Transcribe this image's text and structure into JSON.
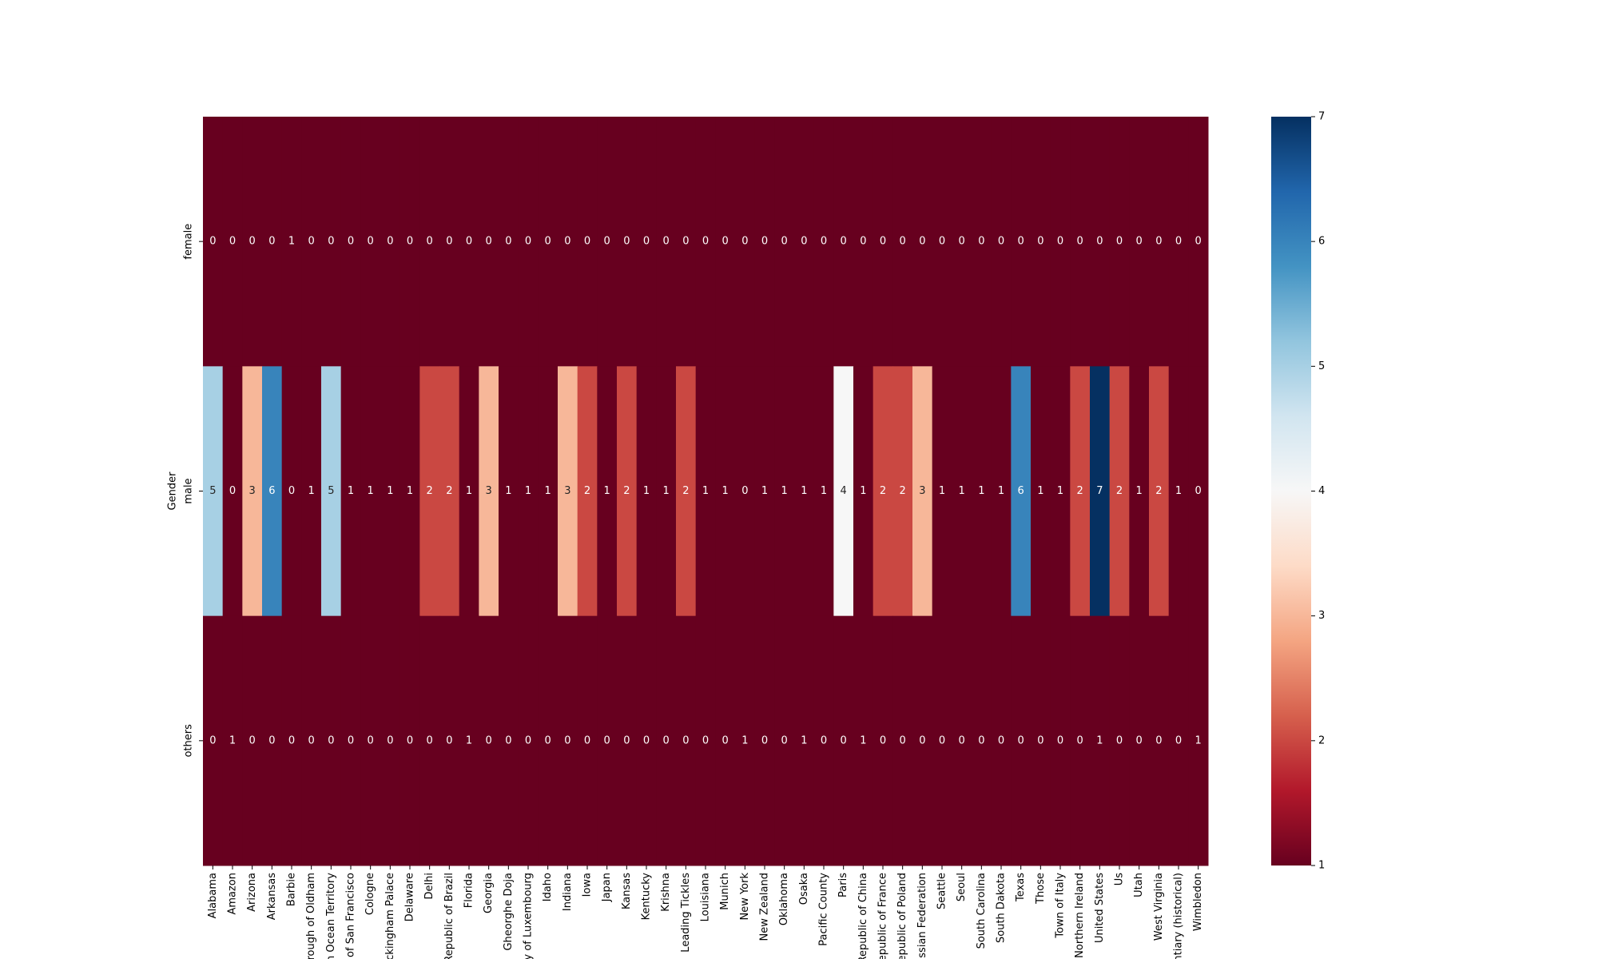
{
  "chart_data": {
    "type": "heatmap",
    "ylabel": "Gender",
    "categories": [
      "Alabama",
      "Amazon",
      "Arizona",
      "Arkansas",
      "Barbie",
      "orough of Oldham",
      "n Ocean Territory",
      "y of San Francisco",
      "Cologne",
      "uckingham Palace",
      "Delaware",
      "Delhi",
      "Republic of Brazil",
      "Florida",
      "Georgia",
      "Gheorghe Doja",
      "ny of Luxembourg",
      "Idaho",
      "Indiana",
      "Iowa",
      "Japan",
      "Kansas",
      "Kentucky",
      "Krishna",
      "Leading Tickles",
      "Louisiana",
      "Munich",
      "New York",
      "New Zealand",
      "Oklahoma",
      "Osaka",
      "Pacific County",
      "Paris",
      "Republic of China",
      "epublic of France",
      "epublic of Poland",
      "ussian Federation",
      "Seattle",
      "Seoul",
      "South Carolina",
      "South Dakota",
      "Texas",
      "Those",
      "Town of Italy",
      "l Northern Ireland",
      "United States",
      "Us",
      "Utah",
      "West Virginia",
      "entiary (historical)",
      "Wimbledon"
    ],
    "rows": [
      "female",
      "male",
      "others"
    ],
    "values": [
      [
        0,
        0,
        0,
        0,
        1,
        0,
        0,
        0,
        0,
        0,
        0,
        0,
        0,
        0,
        0,
        0,
        0,
        0,
        0,
        0,
        0,
        0,
        0,
        0,
        0,
        0,
        0,
        0,
        0,
        0,
        0,
        0,
        0,
        0,
        0,
        0,
        0,
        0,
        0,
        0,
        0,
        0,
        0,
        0,
        0,
        0,
        0,
        0,
        0,
        0,
        0
      ],
      [
        5,
        0,
        3,
        6,
        0,
        1,
        5,
        1,
        1,
        1,
        1,
        2,
        2,
        1,
        3,
        1,
        1,
        1,
        3,
        2,
        1,
        2,
        1,
        1,
        2,
        1,
        1,
        0,
        1,
        1,
        1,
        1,
        4,
        1,
        2,
        2,
        3,
        1,
        1,
        1,
        1,
        6,
        1,
        1,
        2,
        7,
        2,
        1,
        2,
        1,
        0
      ],
      [
        0,
        1,
        0,
        0,
        0,
        0,
        0,
        0,
        0,
        0,
        0,
        0,
        0,
        1,
        0,
        0,
        0,
        0,
        0,
        0,
        0,
        0,
        0,
        0,
        0,
        0,
        0,
        1,
        0,
        0,
        1,
        0,
        0,
        1,
        0,
        0,
        0,
        0,
        0,
        0,
        0,
        0,
        0,
        0,
        0,
        1,
        0,
        0,
        0,
        0,
        1
      ]
    ],
    "colormap": [
      "#67001f",
      "#b2182b",
      "#d6604d",
      "#f4a582",
      "#fddbc7",
      "#f7f7f7",
      "#d1e5f0",
      "#92c5de",
      "#4393c3",
      "#2166ac",
      "#053061"
    ],
    "clim": [
      1,
      7
    ],
    "cticks": [
      1,
      2,
      3,
      4,
      5,
      6,
      7
    ]
  }
}
